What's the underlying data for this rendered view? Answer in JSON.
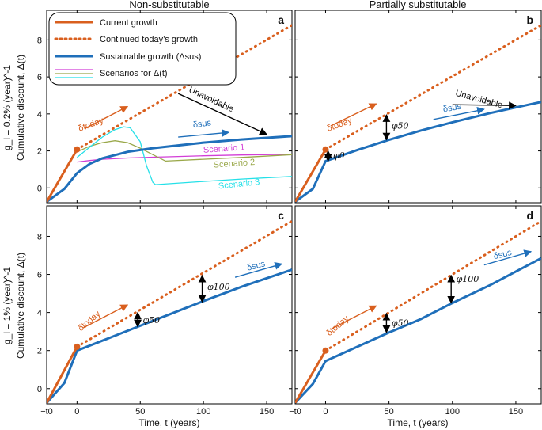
{
  "colors": {
    "current": "#d95f1e",
    "sustainable": "#1f6fba",
    "scenario1": "#d23ed6",
    "scenario2": "#9aa84a",
    "scenario3": "#25e0e8",
    "arrow": "#000000"
  },
  "titles": {
    "col1": "Non-substitutable",
    "col2": "Partially substitutable"
  },
  "row_labels": {
    "top": "g_l = 0.2% (year)^-1",
    "bottom": "g_l = 1% (year)^-1"
  },
  "ylabel": "Cumulative discount, Δ(t)",
  "xlabel": "Time, t (years)",
  "legend": {
    "current": "Current growth",
    "continued": "Continued today’s growth",
    "sustainable": "Sustainable growth (Δsus)",
    "scenarios": "Scenarios for Δ(t)"
  },
  "chart_data": [
    {
      "panel": "a",
      "type": "line",
      "xlim": [
        -24,
        170
      ],
      "ylim": [
        -0.8,
        9.6
      ],
      "xticks": [
        "−t0",
        "0",
        "50",
        "100",
        "150"
      ],
      "yticks": [
        "0",
        "2",
        "4",
        "6",
        "8"
      ],
      "series": [
        {
          "name": "Current growth",
          "x": [
            -24,
            0
          ],
          "y": [
            -0.75,
            2.08
          ]
        },
        {
          "name": "Continued today’s growth",
          "x": [
            0,
            170
          ],
          "y": [
            2.08,
            8.8
          ]
        },
        {
          "name": "Sustainable growth",
          "x": [
            -24,
            -10,
            0,
            10,
            20,
            40,
            60,
            80,
            100,
            130,
            170
          ],
          "y": [
            -0.75,
            -0.05,
            0.8,
            1.3,
            1.6,
            1.95,
            2.15,
            2.3,
            2.45,
            2.62,
            2.8
          ]
        },
        {
          "name": "Scenario 1",
          "x": [
            0,
            10,
            20,
            40,
            60,
            80,
            100,
            130,
            170
          ],
          "y": [
            1.4,
            1.48,
            1.55,
            1.62,
            1.66,
            1.7,
            1.74,
            1.78,
            1.82
          ]
        },
        {
          "name": "Scenario 2",
          "x": [
            0,
            10,
            20,
            30,
            40,
            50,
            60,
            70,
            100,
            130,
            170
          ],
          "y": [
            1.95,
            2.25,
            2.45,
            2.55,
            2.45,
            2.15,
            1.8,
            1.45,
            1.55,
            1.65,
            1.8
          ]
        },
        {
          "name": "Scenario 3",
          "x": [
            0,
            10,
            20,
            30,
            37,
            42,
            50,
            55,
            60,
            62,
            100,
            130,
            170
          ],
          "y": [
            1.65,
            2.2,
            2.75,
            3.15,
            3.3,
            3.25,
            2.5,
            1.2,
            0.3,
            0.18,
            0.35,
            0.48,
            0.62
          ]
        }
      ],
      "annotations": {
        "unavoidable": "Unavoidable",
        "delta_today": "δtoday",
        "delta_sus": "δsus",
        "scenario1": "Scenario 1",
        "scenario2": "Scenario 2",
        "scenario3": "Scenario 3"
      }
    },
    {
      "panel": "b",
      "type": "line",
      "xlim": [
        -24,
        170
      ],
      "ylim": [
        -0.8,
        9.6
      ],
      "xticks": [
        "−t0",
        "0",
        "50",
        "100",
        "150"
      ],
      "yticks": [
        "0",
        "2",
        "4",
        "6",
        "8"
      ],
      "series": [
        {
          "name": "Current growth",
          "x": [
            -24,
            0
          ],
          "y": [
            -0.75,
            2.08
          ]
        },
        {
          "name": "Continued today’s growth",
          "x": [
            0,
            170
          ],
          "y": [
            2.08,
            8.8
          ]
        },
        {
          "name": "Sustainable growth",
          "x": [
            -24,
            -10,
            0,
            25,
            50,
            75,
            100,
            130,
            170
          ],
          "y": [
            -0.75,
            -0.05,
            1.45,
            2.05,
            2.6,
            3.1,
            3.55,
            4.05,
            4.65
          ]
        }
      ],
      "annotations": {
        "unavoidable": "Unavoidable",
        "delta_today": "δtoday",
        "delta_sus": "δsus",
        "phi0": "φ0",
        "phi50": "φ50"
      }
    },
    {
      "panel": "c",
      "type": "line",
      "xlim": [
        -24,
        170
      ],
      "ylim": [
        -0.8,
        9.6
      ],
      "xticks": [
        "−t0",
        "0",
        "50",
        "100",
        "150"
      ],
      "yticks": [
        "0",
        "2",
        "4",
        "6",
        "8"
      ],
      "series": [
        {
          "name": "Current growth",
          "x": [
            -24,
            0
          ],
          "y": [
            -0.75,
            2.2
          ]
        },
        {
          "name": "Continued today’s growth",
          "x": [
            0,
            170
          ],
          "y": [
            2.2,
            8.8
          ]
        },
        {
          "name": "Sustainable growth",
          "x": [
            -24,
            -10,
            0,
            25,
            50,
            75,
            100,
            130,
            170
          ],
          "y": [
            -0.75,
            0.3,
            2.0,
            2.65,
            3.3,
            3.95,
            4.6,
            5.35,
            6.25
          ]
        }
      ],
      "annotations": {
        "delta_today": "δtoday",
        "delta_sus": "δsus",
        "phi50": "φ50",
        "phi100": "φ100"
      }
    },
    {
      "panel": "d",
      "type": "line",
      "xlim": [
        -24,
        170
      ],
      "ylim": [
        -0.8,
        9.6
      ],
      "xticks": [
        "−t0",
        "0",
        "50",
        "100",
        "150"
      ],
      "yticks": [
        "0",
        "2",
        "4",
        "6",
        "8"
      ],
      "series": [
        {
          "name": "Current growth",
          "x": [
            -24,
            0
          ],
          "y": [
            -0.75,
            2.0
          ]
        },
        {
          "name": "Continued today’s growth",
          "x": [
            0,
            170
          ],
          "y": [
            2.0,
            8.8
          ]
        },
        {
          "name": "Sustainable growth",
          "x": [
            -24,
            -10,
            0,
            25,
            50,
            75,
            100,
            130,
            170
          ],
          "y": [
            -0.75,
            0.25,
            1.45,
            2.2,
            2.95,
            3.65,
            4.5,
            5.45,
            6.85
          ]
        }
      ],
      "annotations": {
        "delta_today": "δtoday",
        "delta_sus": "δsus",
        "phi50": "φ50",
        "phi100": "φ100"
      }
    }
  ]
}
